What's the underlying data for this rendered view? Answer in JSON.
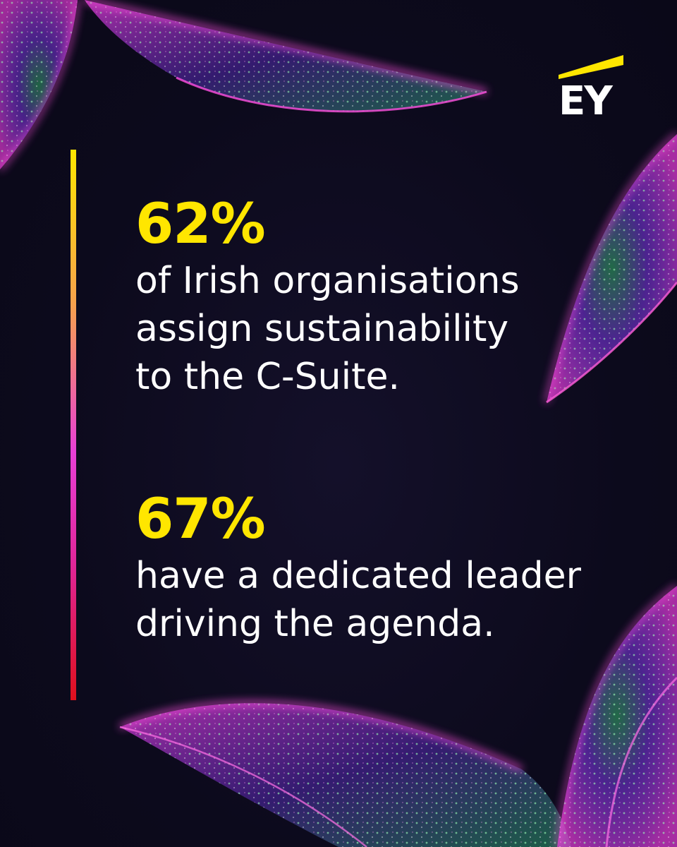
{
  "brand": {
    "logo_text": "EY",
    "accent_yellow": "#ffe600",
    "background": "#0d0a1e"
  },
  "stats": [
    {
      "value": "62%",
      "text": "of Irish organisations\nassign sustainability\nto the C-Suite."
    },
    {
      "value": "67%",
      "text": "have a dedicated leader\ndriving the agenda."
    }
  ],
  "decoration": {
    "motif": "glowing-leaves",
    "colors": [
      "#e23bd6",
      "#8a3cff",
      "#39ff8a",
      "#ff3fa8"
    ]
  }
}
